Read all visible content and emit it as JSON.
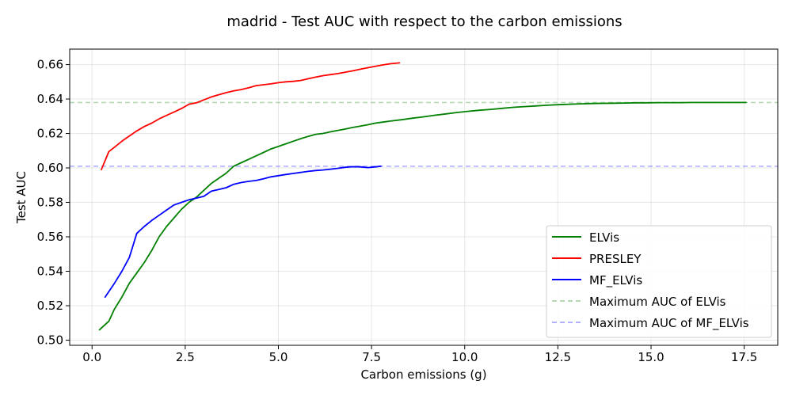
{
  "chart_data": {
    "type": "line",
    "title": "madrid - Test AUC with respect to the carbon emissions",
    "xlabel": "Carbon emissions (g)",
    "ylabel": "Test AUC",
    "xlim": [
      -0.6,
      18.4
    ],
    "ylim": [
      0.497,
      0.669
    ],
    "xticks": [
      0.0,
      2.5,
      5.0,
      7.5,
      10.0,
      12.5,
      15.0,
      17.5
    ],
    "xtick_labels": [
      "0.0",
      "2.5",
      "5.0",
      "7.5",
      "10.0",
      "12.5",
      "15.0",
      "17.5"
    ],
    "yticks": [
      0.5,
      0.52,
      0.54,
      0.56,
      0.58,
      0.6,
      0.62,
      0.64,
      0.66
    ],
    "ytick_labels": [
      "0.50",
      "0.52",
      "0.54",
      "0.56",
      "0.58",
      "0.60",
      "0.62",
      "0.64",
      "0.66"
    ],
    "grid": true,
    "legend_position": "lower-right",
    "series": [
      {
        "name": "ELVis",
        "color": "#008000",
        "style": "solid",
        "x": [
          0.2,
          0.45,
          0.6,
          0.8,
          1.0,
          1.2,
          1.4,
          1.6,
          1.8,
          2.0,
          2.2,
          2.4,
          2.6,
          2.8,
          3.0,
          3.2,
          3.4,
          3.6,
          3.8,
          4.0,
          4.2,
          4.4,
          4.6,
          4.8,
          5.0,
          5.2,
          5.4,
          5.6,
          5.8,
          6.0,
          6.2,
          6.4,
          6.6,
          6.8,
          7.0,
          7.2,
          7.4,
          7.6,
          7.8,
          8.0,
          8.3,
          8.6,
          8.9,
          9.2,
          9.5,
          9.8,
          10.1,
          10.4,
          10.7,
          11.0,
          11.3,
          11.6,
          11.9,
          12.2,
          12.5,
          12.8,
          13.1,
          13.4,
          13.7,
          14.0,
          14.3,
          14.6,
          14.9,
          15.2,
          15.5,
          15.8,
          16.1,
          16.4,
          16.7,
          17.0,
          17.3,
          17.55
        ],
        "values": [
          0.506,
          0.511,
          0.518,
          0.525,
          0.533,
          0.539,
          0.545,
          0.552,
          0.56,
          0.566,
          0.571,
          0.576,
          0.58,
          0.583,
          0.587,
          0.591,
          0.594,
          0.597,
          0.601,
          0.603,
          0.605,
          0.607,
          0.609,
          0.611,
          0.6125,
          0.614,
          0.6155,
          0.617,
          0.6183,
          0.6195,
          0.62,
          0.621,
          0.6218,
          0.6226,
          0.6235,
          0.6243,
          0.6251,
          0.626,
          0.6266,
          0.6272,
          0.628,
          0.6289,
          0.6297,
          0.6306,
          0.6314,
          0.6322,
          0.6329,
          0.6335,
          0.634,
          0.6346,
          0.6352,
          0.6356,
          0.636,
          0.6364,
          0.6367,
          0.637,
          0.6372,
          0.6374,
          0.6375,
          0.6376,
          0.6377,
          0.6378,
          0.6378,
          0.6379,
          0.6379,
          0.6379,
          0.638,
          0.638,
          0.638,
          0.638,
          0.638,
          0.638
        ]
      },
      {
        "name": "PRESLEY",
        "color": "#ff0000",
        "style": "solid",
        "x": [
          0.25,
          0.45,
          0.6,
          0.8,
          1.0,
          1.2,
          1.4,
          1.6,
          1.8,
          2.0,
          2.2,
          2.4,
          2.6,
          2.8,
          3.0,
          3.2,
          3.4,
          3.6,
          3.8,
          4.0,
          4.2,
          4.4,
          4.6,
          4.8,
          5.0,
          5.2,
          5.4,
          5.6,
          5.8,
          6.0,
          6.2,
          6.4,
          6.6,
          6.8,
          7.0,
          7.2,
          7.4,
          7.6,
          7.8,
          8.0,
          8.25
        ],
        "values": [
          0.599,
          0.6095,
          0.612,
          0.6155,
          0.6185,
          0.6215,
          0.624,
          0.626,
          0.6285,
          0.6305,
          0.6325,
          0.6345,
          0.637,
          0.6378,
          0.6395,
          0.6412,
          0.6425,
          0.6437,
          0.6447,
          0.6455,
          0.6465,
          0.6478,
          0.6483,
          0.6488,
          0.6495,
          0.65,
          0.6503,
          0.6508,
          0.6518,
          0.6527,
          0.6536,
          0.6542,
          0.6548,
          0.6556,
          0.6564,
          0.6573,
          0.6582,
          0.659,
          0.6598,
          0.6605,
          0.661
        ]
      },
      {
        "name": "MF_ELVis",
        "color": "#0000ff",
        "style": "solid",
        "x": [
          0.35,
          0.6,
          0.8,
          1.0,
          1.2,
          1.4,
          1.6,
          1.8,
          2.0,
          2.2,
          2.4,
          2.6,
          2.8,
          3.0,
          3.2,
          3.4,
          3.6,
          3.8,
          4.0,
          4.2,
          4.4,
          4.6,
          4.8,
          5.0,
          5.2,
          5.4,
          5.6,
          5.8,
          6.0,
          6.2,
          6.4,
          6.6,
          6.8,
          7.0,
          7.2,
          7.4,
          7.6,
          7.75
        ],
        "values": [
          0.525,
          0.533,
          0.54,
          0.548,
          0.562,
          0.566,
          0.5695,
          0.5725,
          0.5755,
          0.5785,
          0.58,
          0.5815,
          0.5825,
          0.5835,
          0.5865,
          0.5875,
          0.5885,
          0.5905,
          0.5915,
          0.5922,
          0.5927,
          0.5937,
          0.5948,
          0.5955,
          0.5962,
          0.5968,
          0.5974,
          0.598,
          0.5985,
          0.5988,
          0.5993,
          0.5998,
          0.6004,
          0.6007,
          0.6006,
          0.6002,
          0.6006,
          0.601
        ]
      },
      {
        "name": "Maximum AUC of ELVis",
        "color": "#008000",
        "style": "dashed-faint",
        "x": [
          -0.6,
          18.4
        ],
        "values": [
          0.638,
          0.638
        ]
      },
      {
        "name": "Maximum AUC of MF_ELVis",
        "color": "#0000ff",
        "style": "dashed-faint",
        "x": [
          -0.6,
          18.4
        ],
        "values": [
          0.601,
          0.601
        ]
      }
    ]
  }
}
